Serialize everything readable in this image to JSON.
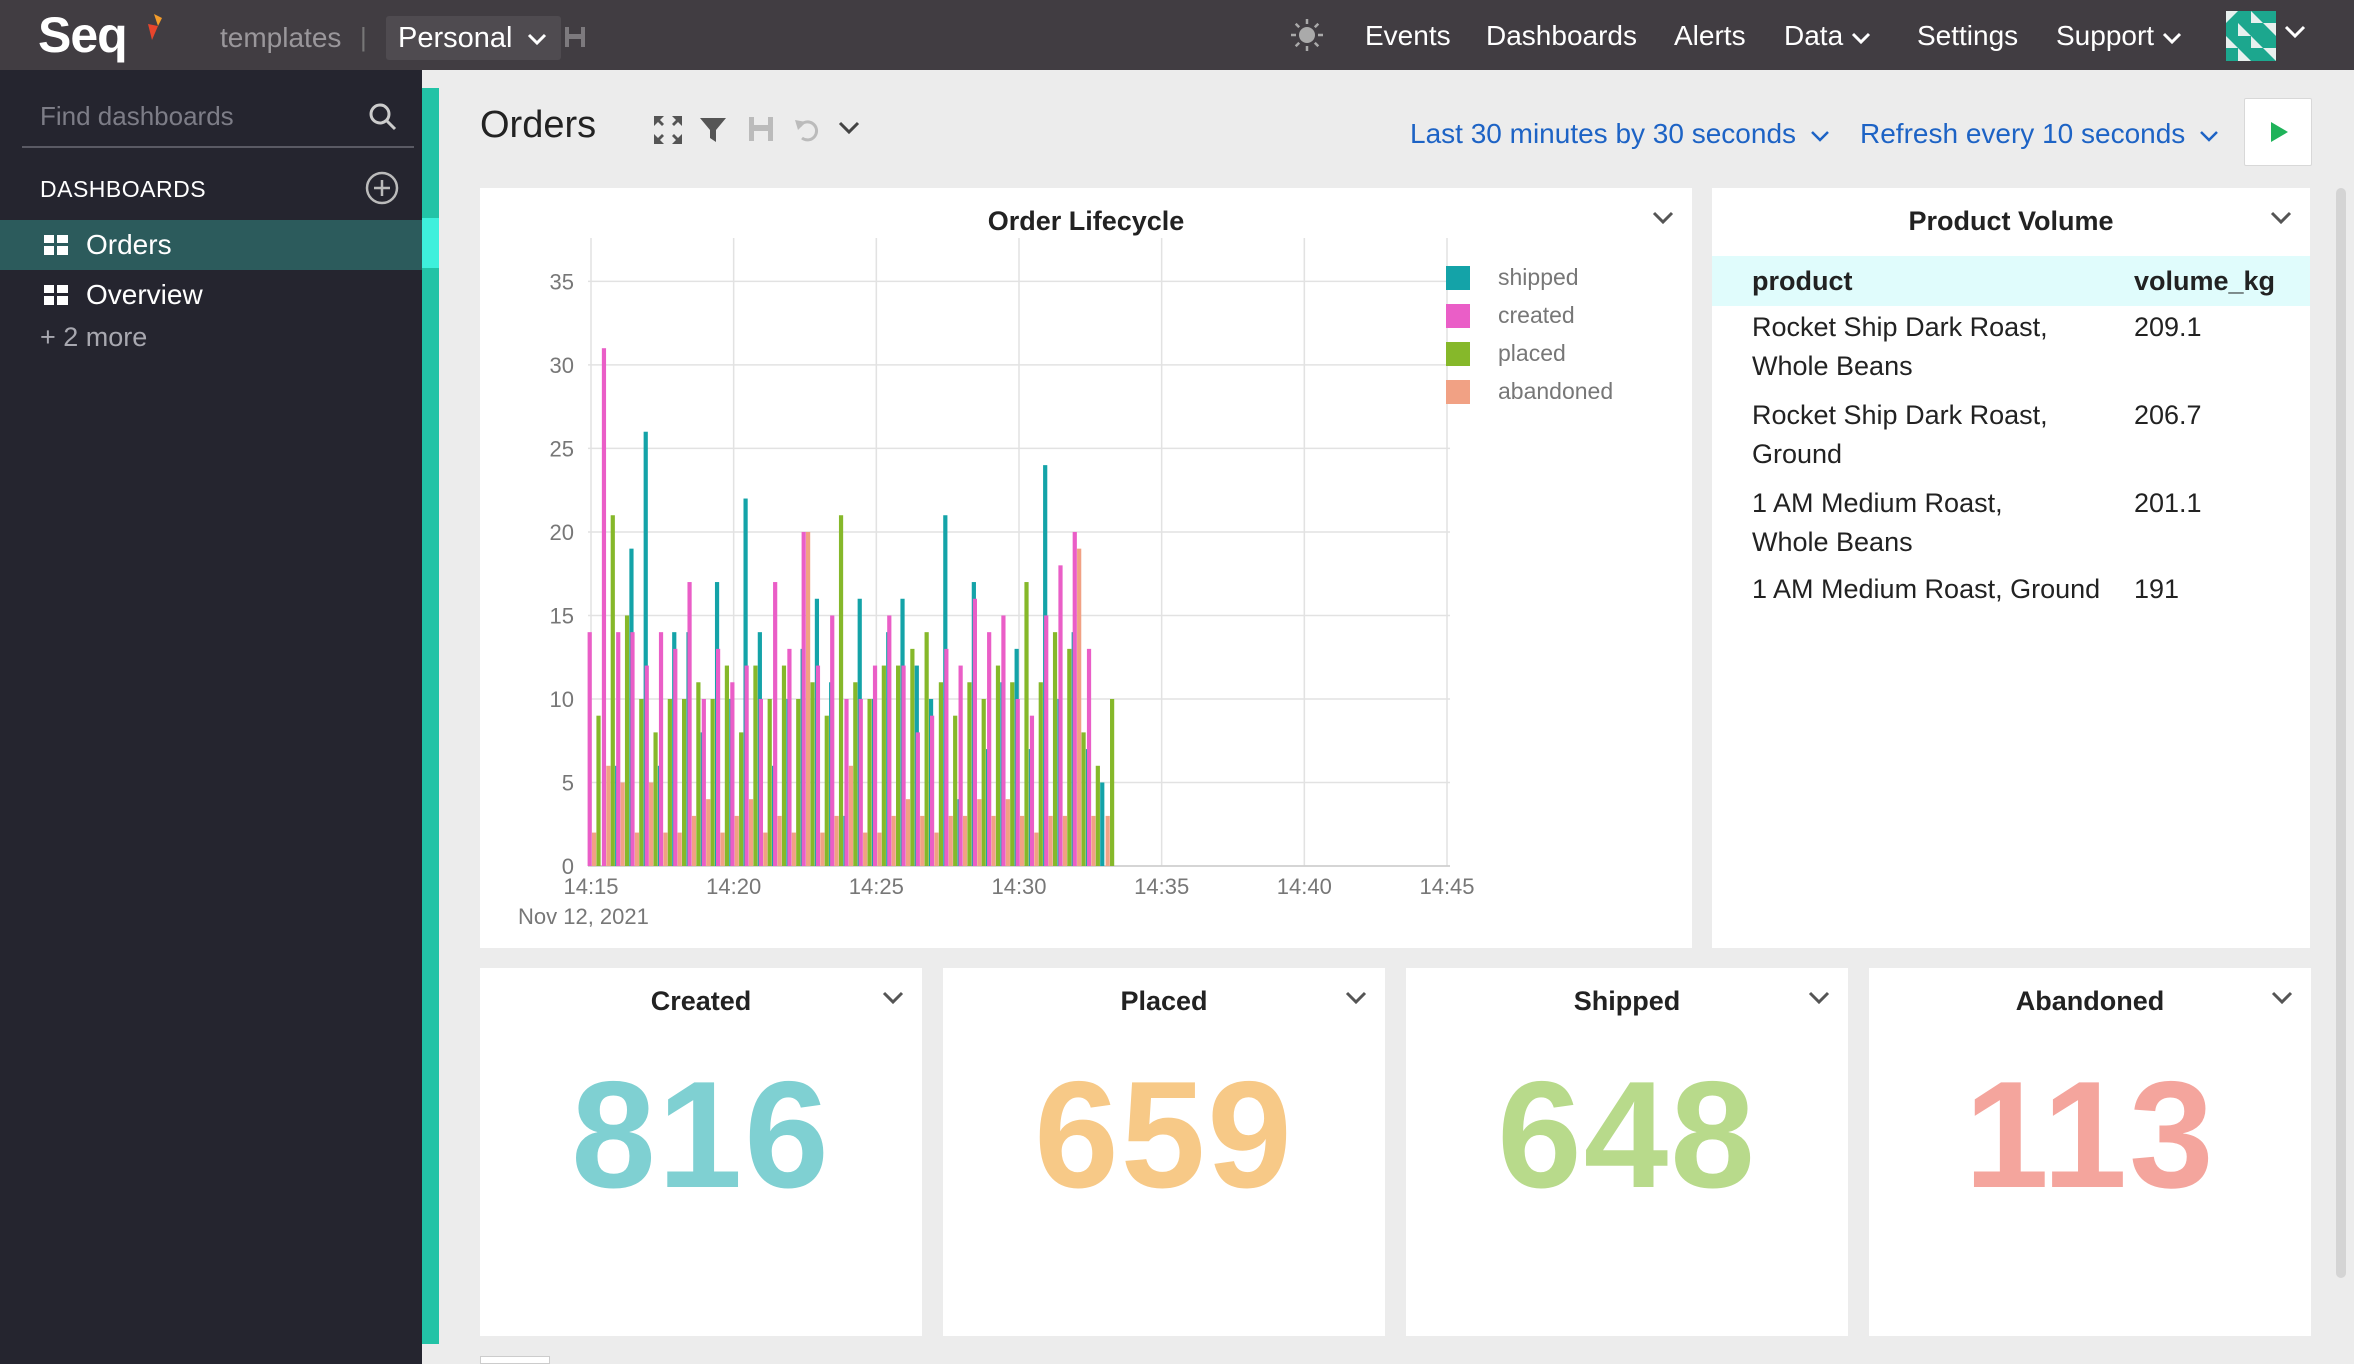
{
  "app": {
    "name": "Seq",
    "workspace": "templates",
    "personal_label": "Personal",
    "nav": [
      "Events",
      "Dashboards",
      "Alerts",
      "Data",
      "Settings",
      "Support"
    ]
  },
  "sidebar": {
    "search_placeholder": "Find dashboards",
    "header": "DASHBOARDS",
    "items": [
      {
        "label": "Orders",
        "active": true
      },
      {
        "label": "Overview",
        "active": false
      }
    ],
    "more": "+ 2 more"
  },
  "dashboard": {
    "title": "Orders",
    "time_range": "Last 30 minutes by 30 seconds",
    "refresh": "Refresh every 10 seconds"
  },
  "colors": {
    "shipped": "#14a3a8",
    "created": "#ea5ec7",
    "placed": "#86b82a",
    "abandoned": "#f1a184",
    "accent": "#22c3a6",
    "link": "#1d63c5",
    "stat_created": "#7fd0d2",
    "stat_placed": "#f7c987",
    "stat_shipped": "#b8da8b",
    "stat_abandoned": "#f4a59d"
  },
  "chart_data": {
    "type": "bar",
    "title": "Order Lifecycle",
    "date_label": "Nov 12, 2021",
    "x_ticks": [
      "14:15",
      "14:20",
      "14:25",
      "14:30",
      "14:35",
      "14:40",
      "14:45"
    ],
    "ylim": [
      0,
      37
    ],
    "y_ticks": [
      0,
      5,
      10,
      15,
      20,
      25,
      30,
      35
    ],
    "grid": true,
    "legend_position": "right",
    "x_unit": "minutes since 14:15",
    "series": [
      {
        "name": "shipped",
        "values": [
          0,
          6,
          19,
          26,
          6,
          14,
          14,
          8,
          17,
          10,
          22,
          14,
          6,
          10,
          13,
          16,
          11,
          3,
          16,
          10,
          14,
          16,
          12,
          10,
          21,
          4,
          17,
          7,
          11,
          13,
          7,
          24,
          10,
          14,
          7,
          5,
          0
        ]
      },
      {
        "name": "created",
        "values": [
          14,
          31,
          14,
          14,
          12,
          14,
          13,
          17,
          10,
          13,
          11,
          12,
          10,
          17,
          13,
          20,
          12,
          15,
          10,
          10,
          12,
          15,
          12,
          8,
          9,
          13,
          12,
          16,
          14,
          15,
          10,
          9,
          15,
          18,
          20,
          13,
          0
        ]
      },
      {
        "name": "placed",
        "values": [
          9,
          21,
          15,
          10,
          8,
          10,
          10,
          11,
          10,
          12,
          8,
          12,
          10,
          12,
          10,
          11,
          9,
          21,
          11,
          10,
          12,
          12,
          13,
          14,
          11,
          9,
          11,
          10,
          12,
          11,
          17,
          11,
          14,
          13,
          8,
          6,
          10
        ]
      },
      {
        "name": "abandoned",
        "values": [
          2,
          6,
          5,
          2,
          5,
          2,
          2,
          3,
          4,
          2,
          3,
          4,
          2,
          3,
          2,
          20,
          2,
          3,
          6,
          2,
          2,
          3,
          4,
          3,
          2,
          3,
          3,
          4,
          3,
          4,
          3,
          2,
          3,
          3,
          19,
          3,
          3
        ]
      }
    ]
  },
  "product_volume": {
    "title": "Product Volume",
    "columns": [
      "product",
      "volume_kg"
    ],
    "rows": [
      {
        "product": "Rocket Ship Dark Roast, Whole Beans",
        "volume_kg": "209.1"
      },
      {
        "product": "Rocket Ship Dark Roast, Ground",
        "volume_kg": "206.7"
      },
      {
        "product": "1 AM Medium Roast, Whole Beans",
        "volume_kg": "201.1"
      },
      {
        "product": "1 AM Medium Roast, Ground",
        "volume_kg": "191"
      }
    ]
  },
  "stats": [
    {
      "label": "Created",
      "value": "816",
      "color": "#7fd0d2"
    },
    {
      "label": "Placed",
      "value": "659",
      "color": "#f7c987"
    },
    {
      "label": "Shipped",
      "value": "648",
      "color": "#b8da8b"
    },
    {
      "label": "Abandoned",
      "value": "113",
      "color": "#f4a59d"
    }
  ]
}
